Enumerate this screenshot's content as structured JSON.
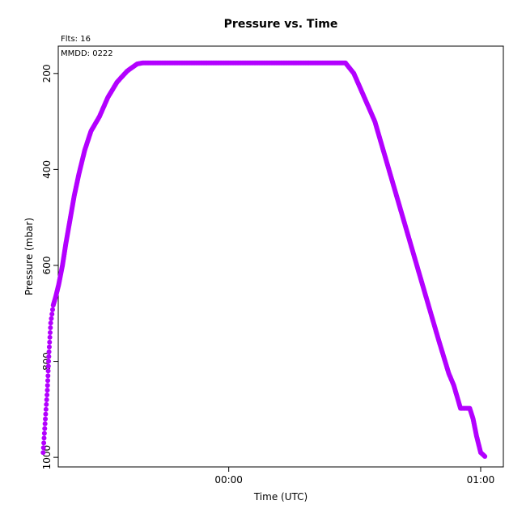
{
  "chart_data": {
    "type": "scatter",
    "title": "Pressure  vs. Time",
    "flts_label": "Flts: 16",
    "mmdd_label": "MMDD: 0222",
    "xlabel": "Time (UTC)",
    "ylabel": "Pressure (mbar)",
    "x_unit": "minutes relative to 00:00 UTC",
    "xlim": [
      -40.6,
      65.4
    ],
    "ylim": [
      1020,
      143
    ],
    "x_ticks": [
      {
        "value": 0,
        "label": "00:00"
      },
      {
        "value": 60,
        "label": "01:00"
      }
    ],
    "y_ticks": [
      {
        "value": 200,
        "label": "200"
      },
      {
        "value": 400,
        "label": "400"
      },
      {
        "value": 600,
        "label": "600"
      },
      {
        "value": 800,
        "label": "800"
      },
      {
        "value": 1000,
        "label": "1000"
      }
    ],
    "grid": false,
    "marker_color": "#b300ff",
    "series": [
      {
        "points": [
          {
            "x": -44.2,
            "y": 990
          },
          {
            "x": -43.6,
            "y": 910
          },
          {
            "x": -43.2,
            "y": 860
          },
          {
            "x": -42.8,
            "y": 780
          },
          {
            "x": -42.4,
            "y": 720
          },
          {
            "x": -41.8,
            "y": 683
          },
          {
            "x": -41.2,
            "y": 665
          },
          {
            "x": -40.5,
            "y": 640
          },
          {
            "x": -39.6,
            "y": 600
          },
          {
            "x": -38.8,
            "y": 555
          },
          {
            "x": -37.9,
            "y": 510
          },
          {
            "x": -36.8,
            "y": 455
          },
          {
            "x": -35.7,
            "y": 410
          },
          {
            "x": -34.3,
            "y": 360
          },
          {
            "x": -32.8,
            "y": 320
          },
          {
            "x": -30.8,
            "y": 290
          },
          {
            "x": -28.8,
            "y": 250
          },
          {
            "x": -26.6,
            "y": 218
          },
          {
            "x": -24.2,
            "y": 195
          },
          {
            "x": -21.8,
            "y": 180
          },
          {
            "x": -20.5,
            "y": 178
          },
          {
            "x": 0,
            "y": 178
          },
          {
            "x": 20,
            "y": 178
          },
          {
            "x": 27.8,
            "y": 178
          },
          {
            "x": 29.8,
            "y": 200
          },
          {
            "x": 31.8,
            "y": 240
          },
          {
            "x": 34.8,
            "y": 300
          },
          {
            "x": 37.8,
            "y": 390
          },
          {
            "x": 41.8,
            "y": 510
          },
          {
            "x": 45.8,
            "y": 630
          },
          {
            "x": 49.8,
            "y": 750
          },
          {
            "x": 52.4,
            "y": 825
          },
          {
            "x": 53.6,
            "y": 850
          },
          {
            "x": 54.6,
            "y": 880
          },
          {
            "x": 55.2,
            "y": 898
          },
          {
            "x": 57.4,
            "y": 898
          },
          {
            "x": 58.2,
            "y": 920
          },
          {
            "x": 59.0,
            "y": 955
          },
          {
            "x": 60.0,
            "y": 990
          },
          {
            "x": 61.0,
            "y": 998
          }
        ]
      }
    ]
  }
}
